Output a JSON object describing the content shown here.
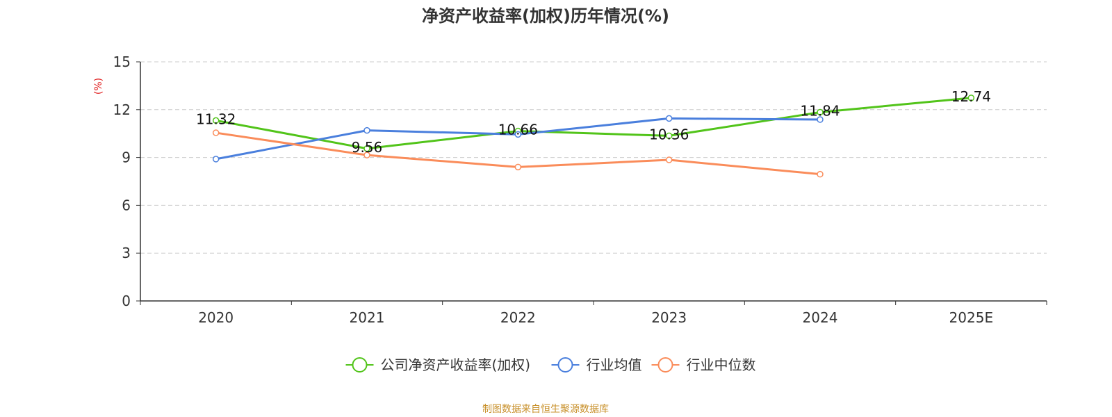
{
  "chart_data": {
    "type": "line",
    "title": "净资产收益率(加权)历年情况(%)",
    "ylabel": "(%)",
    "xlabel": "",
    "categories": [
      "2020",
      "2021",
      "2022",
      "2023",
      "2024",
      "2025E"
    ],
    "ylim": [
      0,
      15
    ],
    "yticks": [
      "0",
      "3",
      "6",
      "9",
      "12",
      "15"
    ],
    "grid": true,
    "legend_position": "bottom",
    "series": [
      {
        "name": "公司净资产收益率(加权)",
        "color": "#52c41a",
        "values": [
          11.32,
          9.56,
          10.66,
          10.36,
          11.84,
          12.74
        ],
        "labels": [
          "11.32",
          "9.56",
          "10.66",
          "10.36",
          "11.84",
          "12.74"
        ]
      },
      {
        "name": "行业均值",
        "color": "#4a7fdd",
        "values": [
          8.9,
          10.7,
          10.45,
          11.45,
          11.38,
          null
        ]
      },
      {
        "name": "行业中位数",
        "color": "#fa8c5a",
        "values": [
          10.55,
          9.15,
          8.4,
          8.85,
          7.95,
          null
        ]
      }
    ]
  },
  "source": {
    "text": "制图数据来自恒生聚源数据库",
    "color": "#c8902a"
  },
  "unit_color": "#e02020"
}
